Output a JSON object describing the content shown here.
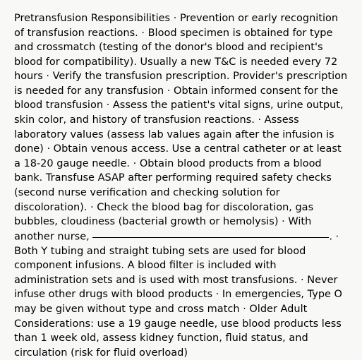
{
  "document": {
    "title": "Pretransfusion Responsibilities",
    "separator": " · ",
    "items": [
      "Prevention or early recognition of transfusion reactions.",
      "Blood specimen is obtained for type and crossmatch (testing of the donor's blood and recipient's blood for compatibility). Usually a new T&C is needed every 72 hours",
      "Verify the transfusion prescription. Provider's prescription is needed for any transfusion",
      "Obtain informed consent for the blood transfusion",
      "Assess the patient's vital signs, urine output, skin color, and history of transfusion reactions.",
      "Assess laboratory values (assess lab values again after the infusion is done)",
      "Obtain venous access. Use a central catheter or at least a 18-20 gauge needle.",
      "Obtain blood products from a blood bank. Transfuse ASAP after performing required safety checks (second nurse verification and checking solution for discoloration).",
      "Check the blood bag for discoloration, gas bubbles, cloudiness (bacterial growth or hemolysis)",
      "With another nurse, ",
      "Both Y tubing and straight tubing sets are used for blood component infusions. A blood filter is included with administration sets and is used with most transfusions.",
      "Never infuse other drugs with blood products",
      "In emergencies, Type O may be given without type and cross match",
      "Older Adult Considerations: use a 19 gauge needle, use blood products less than 1 week old, assess kidney function, fluid status, and circulation (risk for fluid overload)"
    ],
    "blank_after_index": 9,
    "text_color": "#000000",
    "background_color": "#f8f8f6",
    "font_size": 14.5
  }
}
